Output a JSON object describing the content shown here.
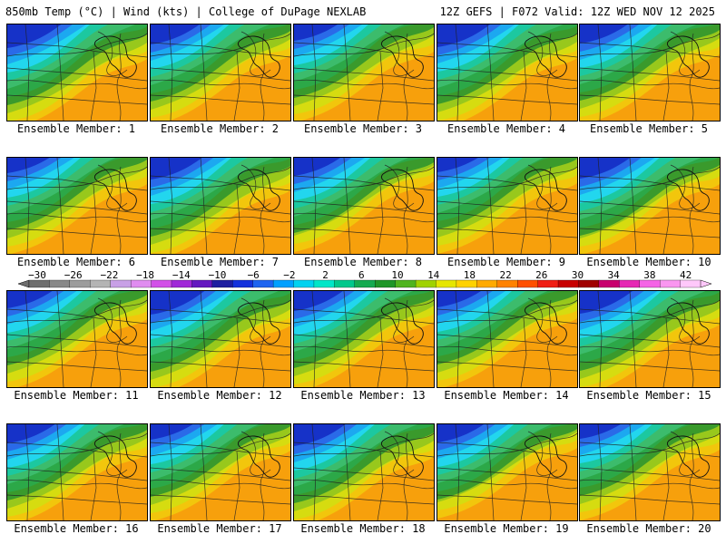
{
  "header": {
    "left": "850mb Temp (°C) | Wind (kts) | College of DuPage NEXLAB",
    "right": "12Z GEFS | F072 Valid: 12Z WED NOV 12 2025"
  },
  "members": [
    "Ensemble Member: 1",
    "Ensemble Member: 2",
    "Ensemble Member: 3",
    "Ensemble Member: 4",
    "Ensemble Member: 5",
    "Ensemble Member: 6",
    "Ensemble Member: 7",
    "Ensemble Member: 8",
    "Ensemble Member: 9",
    "Ensemble Member: 10",
    "Ensemble Member: 11",
    "Ensemble Member: 12",
    "Ensemble Member: 13",
    "Ensemble Member: 14",
    "Ensemble Member: 15",
    "Ensemble Member: 16",
    "Ensemble Member: 17",
    "Ensemble Member: 18",
    "Ensemble Member: 19",
    "Ensemble Member: 20"
  ],
  "colorbar": {
    "labels": [
      "−30",
      "−26",
      "−22",
      "−18",
      "−14",
      "−10",
      "−6",
      "−2",
      "2",
      "6",
      "10",
      "14",
      "18",
      "22",
      "26",
      "30",
      "34",
      "38",
      "42"
    ],
    "colors": [
      "#6e6e6e",
      "#888888",
      "#9c9c9c",
      "#b4b4b4",
      "#c8a0e6",
      "#e08cf0",
      "#d250e8",
      "#a028d8",
      "#6418c0",
      "#1e1ea0",
      "#1432dc",
      "#1e64f0",
      "#00a0ff",
      "#00d2f0",
      "#00e6c8",
      "#00c88c",
      "#14aa50",
      "#1e9628",
      "#50b41e",
      "#a0d200",
      "#e6e600",
      "#ffd200",
      "#ffaa00",
      "#ff8200",
      "#ff5000",
      "#f01e14",
      "#c80000",
      "#a00000",
      "#c8006e",
      "#e628b4",
      "#f564e6",
      "#fa96f0",
      "#ffc8fa"
    ]
  },
  "map_palette": {
    "dark_blue": "#1632c8",
    "blue": "#2a6ae8",
    "sky": "#1ca8f0",
    "cyan": "#22d6ee",
    "teal": "#1cc8a0",
    "green_light": "#3cbc6c",
    "green": "#2ca848",
    "green_dark": "#3a9a2c",
    "lime": "#98c81c",
    "yellow": "#d6dc10",
    "gold": "#f2c60c",
    "orange": "#f7a00c",
    "contour": "#202020"
  }
}
